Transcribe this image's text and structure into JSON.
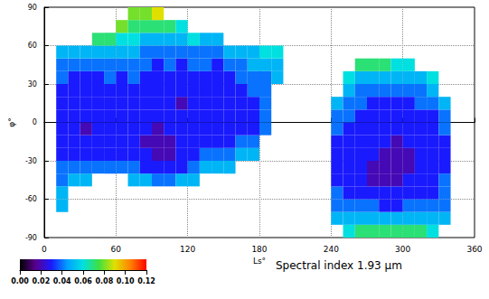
{
  "chart_data": {
    "type": "heatmap",
    "title": "Spectral index 1.93 μm",
    "x_label": "Ls°",
    "y_label": "φ°",
    "xlim": [
      0,
      360
    ],
    "xticks": [
      0,
      60,
      120,
      180,
      240,
      300,
      360
    ],
    "ylim": [
      -90,
      90
    ],
    "yticks": [
      -90,
      -60,
      -30,
      0,
      30,
      60,
      90
    ],
    "grid": true,
    "x": [
      15,
      25,
      35,
      45,
      55,
      65,
      75,
      85,
      95,
      105,
      115,
      125,
      135,
      145,
      155,
      165,
      175,
      185,
      195,
      245,
      255,
      265,
      275,
      285,
      295,
      305,
      315,
      325,
      335
    ],
    "y": [
      -85,
      -75,
      -65,
      -55,
      -45,
      -35,
      -25,
      -15,
      -5,
      5,
      15,
      25,
      35,
      45,
      55,
      65,
      75,
      85
    ],
    "values": [
      [
        null,
        null,
        0.05,
        0.05,
        0.04,
        0.04,
        0.03,
        0.03,
        0.03,
        0.03,
        0.03,
        0.03,
        0.04,
        0.04,
        0.05,
        null,
        null,
        null
      ],
      [
        null,
        null,
        null,
        null,
        0.05,
        0.04,
        0.03,
        0.03,
        0.03,
        0.03,
        0.03,
        0.03,
        0.03,
        0.04,
        0.05,
        null,
        null,
        null
      ],
      [
        null,
        null,
        null,
        null,
        0.05,
        0.04,
        0.03,
        0.03,
        0.02,
        0.03,
        0.03,
        0.03,
        0.03,
        0.04,
        0.05,
        null,
        null,
        null
      ],
      [
        null,
        null,
        null,
        null,
        null,
        0.04,
        0.03,
        0.03,
        0.03,
        0.03,
        0.03,
        0.03,
        0.03,
        0.04,
        0.05,
        0.07,
        null,
        null
      ],
      [
        null,
        null,
        null,
        null,
        null,
        0.04,
        0.03,
        0.03,
        0.03,
        0.03,
        0.03,
        0.03,
        0.04,
        0.04,
        0.05,
        0.07,
        null,
        null
      ],
      [
        null,
        null,
        null,
        null,
        null,
        0.04,
        0.03,
        0.03,
        0.03,
        0.03,
        0.03,
        0.03,
        0.03,
        0.04,
        0.05,
        0.06,
        0.08,
        null
      ],
      [
        null,
        null,
        null,
        null,
        0.05,
        0.04,
        0.03,
        0.03,
        0.03,
        0.03,
        0.03,
        0.03,
        0.04,
        0.04,
        0.05,
        0.06,
        0.07,
        0.08
      ],
      [
        null,
        null,
        null,
        null,
        0.05,
        0.03,
        0.03,
        0.02,
        0.03,
        0.03,
        0.03,
        0.03,
        0.03,
        0.04,
        0.04,
        0.05,
        0.07,
        0.08
      ],
      [
        null,
        null,
        null,
        null,
        0.04,
        0.03,
        0.02,
        0.02,
        0.02,
        0.03,
        0.03,
        0.03,
        0.03,
        0.03,
        0.04,
        0.05,
        0.07,
        0.09
      ],
      [
        null,
        null,
        null,
        null,
        0.04,
        0.03,
        0.02,
        0.02,
        0.03,
        0.03,
        0.03,
        0.03,
        0.03,
        0.04,
        0.04,
        0.05,
        0.07,
        null
      ],
      [
        null,
        null,
        null,
        null,
        0.05,
        0.03,
        0.03,
        0.03,
        0.03,
        0.03,
        0.02,
        0.03,
        0.03,
        0.03,
        0.04,
        0.05,
        0.06,
        null
      ],
      [
        null,
        null,
        null,
        null,
        0.05,
        0.04,
        0.03,
        0.03,
        0.03,
        0.03,
        0.03,
        0.03,
        0.03,
        0.04,
        0.04,
        0.06,
        null,
        null
      ],
      [
        null,
        null,
        null,
        null,
        null,
        0.05,
        0.04,
        0.03,
        0.03,
        0.03,
        0.03,
        0.03,
        0.03,
        0.04,
        0.04,
        0.05,
        null,
        null
      ],
      [
        null,
        null,
        null,
        null,
        null,
        0.05,
        0.04,
        0.03,
        0.03,
        0.03,
        0.03,
        0.03,
        0.03,
        0.03,
        0.04,
        0.05,
        null,
        null
      ],
      [
        null,
        null,
        null,
        null,
        null,
        0.05,
        0.04,
        0.03,
        0.03,
        0.03,
        0.03,
        0.03,
        0.03,
        0.04,
        0.05,
        null,
        null,
        null
      ],
      [
        null,
        null,
        null,
        null,
        null,
        null,
        0.05,
        0.04,
        0.03,
        0.03,
        0.03,
        0.03,
        0.04,
        0.04,
        0.05,
        null,
        null,
        null
      ],
      [
        null,
        null,
        null,
        null,
        null,
        null,
        0.05,
        0.04,
        0.03,
        0.03,
        0.03,
        0.04,
        0.04,
        0.05,
        0.05,
        null,
        null,
        null
      ],
      [
        null,
        null,
        null,
        null,
        null,
        null,
        null,
        null,
        0.04,
        0.04,
        0.04,
        0.04,
        0.04,
        0.05,
        0.06,
        null,
        null,
        null
      ],
      [
        null,
        null,
        null,
        null,
        null,
        null,
        null,
        null,
        null,
        null,
        null,
        null,
        0.05,
        0.05,
        0.06,
        null,
        null,
        null
      ],
      [
        null,
        0.05,
        0.04,
        0.04,
        0.03,
        0.03,
        0.03,
        0.03,
        0.04,
        0.04,
        0.05,
        null,
        null,
        null,
        null,
        null,
        null,
        null
      ],
      [
        0.06,
        0.05,
        0.04,
        0.03,
        0.03,
        0.03,
        0.03,
        0.03,
        0.03,
        0.04,
        0.04,
        0.05,
        0.06,
        null,
        null,
        null,
        null,
        null
      ],
      [
        0.07,
        0.05,
        0.04,
        0.03,
        0.03,
        0.03,
        0.03,
        0.03,
        0.03,
        0.03,
        0.04,
        0.04,
        0.05,
        0.07,
        null,
        null,
        null,
        null
      ],
      [
        0.07,
        0.05,
        0.04,
        0.03,
        0.02,
        0.02,
        0.03,
        0.03,
        0.03,
        0.03,
        0.03,
        0.04,
        0.05,
        0.07,
        null,
        null,
        null,
        null
      ],
      [
        0.07,
        0.05,
        0.03,
        0.03,
        0.02,
        0.02,
        0.02,
        0.03,
        0.03,
        0.03,
        0.03,
        0.04,
        0.05,
        0.07,
        null,
        null,
        null,
        null
      ],
      [
        0.07,
        0.05,
        0.03,
        0.03,
        0.02,
        0.02,
        0.02,
        0.02,
        0.03,
        0.03,
        0.03,
        0.04,
        0.05,
        0.06,
        null,
        null,
        null,
        null
      ],
      [
        0.07,
        0.05,
        0.04,
        0.03,
        0.03,
        0.02,
        0.02,
        0.03,
        0.03,
        0.03,
        0.03,
        0.04,
        0.05,
        0.06,
        null,
        null,
        null,
        null
      ],
      [
        0.07,
        0.05,
        0.04,
        0.03,
        0.03,
        0.03,
        0.03,
        0.03,
        0.03,
        0.03,
        0.04,
        0.04,
        0.05,
        null,
        null,
        null,
        null,
        null
      ],
      [
        0.06,
        0.05,
        0.04,
        0.03,
        0.03,
        0.03,
        0.03,
        0.03,
        0.03,
        0.03,
        0.04,
        0.05,
        0.06,
        null,
        null,
        null,
        null,
        null
      ],
      [
        null,
        0.05,
        0.04,
        0.04,
        0.04,
        0.03,
        0.03,
        0.03,
        0.04,
        0.04,
        0.05,
        null,
        null,
        null,
        null,
        null,
        null,
        null
      ]
    ],
    "colorbar": {
      "range": [
        0,
        0.12
      ],
      "ticks": [
        {
          "value": 0,
          "label": "0.00"
        },
        {
          "value": 0.02,
          "label": "0.02"
        },
        {
          "value": 0.04,
          "label": "0.04"
        },
        {
          "value": 0.06,
          "label": "0.06"
        },
        {
          "value": 0.08,
          "label": "0.08"
        },
        {
          "value": 0.1,
          "label": "0.10"
        },
        {
          "value": 0.12,
          "label": "0.12"
        }
      ]
    }
  }
}
